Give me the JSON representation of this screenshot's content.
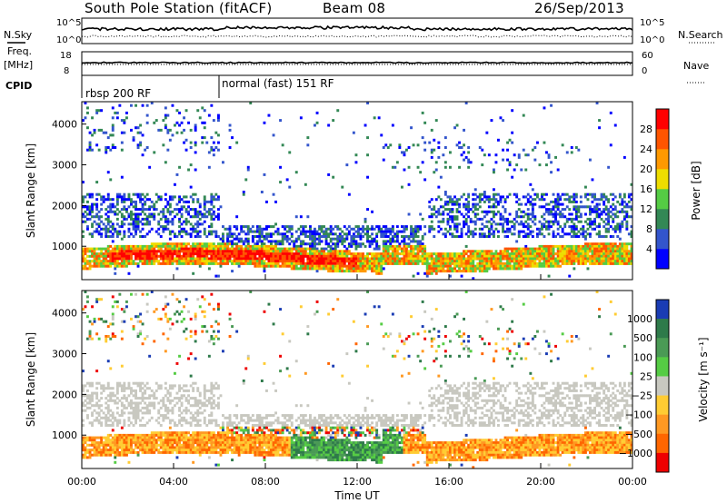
{
  "header": {
    "station": "South Pole Station (fitACF)",
    "beam": "Beam 08",
    "date": "26/Sep/2013"
  },
  "top_panels": {
    "left_labels": {
      "nsky": "N.Sky",
      "freq": "Freq.",
      "freq_unit": "[MHz]",
      "cpid": "CPID"
    },
    "right_labels": {
      "nsearch": "N.Search",
      "nave": "Nave"
    },
    "noise_ticks_left": [
      "10^5",
      "10^0"
    ],
    "noise_ticks_right": [
      "10^5",
      "10^0"
    ],
    "freq_ticks_left": [
      "18",
      "8"
    ],
    "nave_ticks_right": [
      "60",
      "0"
    ],
    "cpid_segments": [
      {
        "label": "rbsp 200 RF",
        "start_hour": 0
      },
      {
        "label": "normal (fast) 151 RF",
        "start_hour": 6
      }
    ]
  },
  "chart_data": [
    {
      "type": "heatmap",
      "title": "",
      "xlabel": "Time UT",
      "ylabel": "Slant Range [km]",
      "x_ticks": [
        "00:00",
        "04:00",
        "08:00",
        "12:00",
        "16:00",
        "20:00",
        "00:00"
      ],
      "xlim_hours": [
        0,
        24
      ],
      "y_ticks": [
        "1000",
        "2000",
        "3000",
        "4000"
      ],
      "ylim": [
        180,
        4550
      ],
      "colorbar": {
        "label": "Power [dB]",
        "ticks": [
          "4",
          "8",
          "12",
          "16",
          "20",
          "24",
          "28"
        ],
        "colors": [
          "#0000ff",
          "#3355cc",
          "#338855",
          "#55cc44",
          "#eedd00",
          "#ff9900",
          "#ff5500",
          "#ff0000"
        ]
      }
    },
    {
      "type": "heatmap",
      "title": "",
      "xlabel": "Time UT",
      "ylabel": "Slant Range [km]",
      "x_ticks": [
        "00:00",
        "04:00",
        "08:00",
        "12:00",
        "16:00",
        "20:00",
        "00:00"
      ],
      "xlim_hours": [
        0,
        24
      ],
      "y_ticks": [
        "1000",
        "2000",
        "3000",
        "4000"
      ],
      "ylim": [
        180,
        4550
      ],
      "colorbar": {
        "label": "Velocity [m s⁻¹]",
        "ticks": [
          "1000",
          "500",
          "100",
          "25",
          "−25",
          "−100",
          "−500",
          "−1000"
        ],
        "colors": [
          "#1a3cb4",
          "#2e7a4a",
          "#4a9a55",
          "#55cc44",
          "#c8c8c0",
          "#ffcc33",
          "#ff9922",
          "#ff6600",
          "#ee0000"
        ]
      }
    }
  ],
  "axis": {
    "time_label": "Time UT"
  }
}
